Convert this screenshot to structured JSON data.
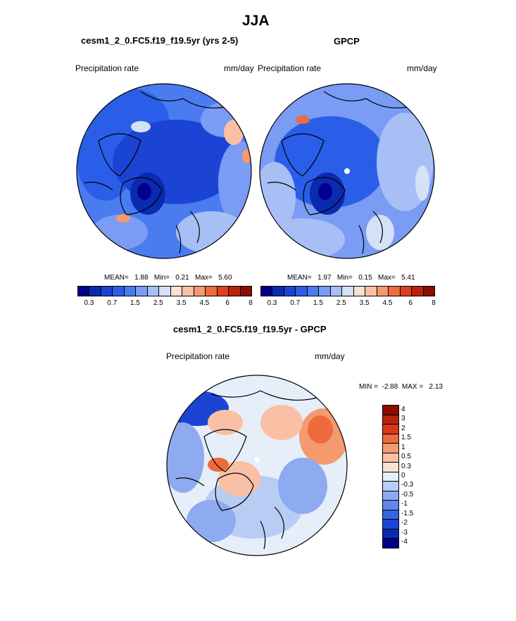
{
  "season": "JJA",
  "panels": {
    "model": {
      "title": "cesm1_2_0.FC5.f19_f19.5yr (yrs 2-5)",
      "var_label": "Precipitation rate",
      "units": "mm/day",
      "stats": {
        "mean_label": "MEAN=",
        "mean": "1.88",
        "min_label": "Min=",
        "min": "0.21",
        "max_label": "Max=",
        "max": "5.60"
      }
    },
    "obs": {
      "title": "GPCP",
      "var_label": "Precipitation rate",
      "units": "mm/day",
      "stats": {
        "mean_label": "MEAN=",
        "mean": "1.97",
        "min_label": "Min=",
        "min": "0.15",
        "max_label": "Max=",
        "max": "5.41"
      }
    },
    "diff": {
      "title": "cesm1_2_0.FC5.f19_f19.5yr - GPCP",
      "var_label": "Precipitation rate",
      "units": "mm/day",
      "stats": {
        "min_label": "MIN =",
        "min": "-2.88",
        "max_label": "MAX =",
        "max": "2.13"
      }
    }
  },
  "colorbar_abs": {
    "colors": [
      "#00008c",
      "#0a2ab0",
      "#1c44d4",
      "#2a5ee8",
      "#4a7cf0",
      "#7a9cf4",
      "#a8bff5",
      "#d4e1f6",
      "#fbe1d2",
      "#f9c0a5",
      "#f5996f",
      "#ef6a3c",
      "#de4020",
      "#b8230e",
      "#8c0c00"
    ],
    "labels": [
      "0.3",
      "0.7",
      "1.5",
      "2.5",
      "3.5",
      "4.5",
      "6",
      "8"
    ]
  },
  "colorbar_diff": {
    "colors": [
      "#8c0c00",
      "#b8230e",
      "#d9381a",
      "#ef6a3c",
      "#f5996f",
      "#f9c0a5",
      "#fbe1d2",
      "#e6eef9",
      "#b8cdf3",
      "#8eaaf0",
      "#5f88ea",
      "#3566e0",
      "#1c44d4",
      "#0a2ab0",
      "#00008c"
    ],
    "labels": [
      "4",
      "3",
      "2",
      "1.5",
      "1",
      "0.5",
      "0.3",
      "0",
      "-0.3",
      "-0.5",
      "-1",
      "-1.5",
      "-2",
      "-3",
      "-4"
    ]
  }
}
